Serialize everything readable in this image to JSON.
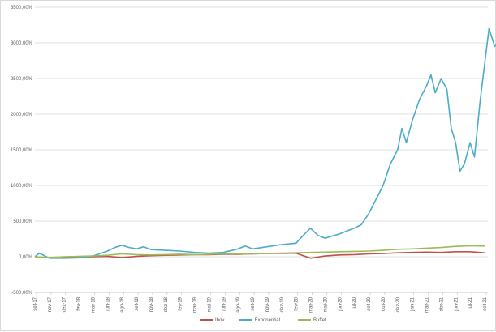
{
  "chart_data": {
    "type": "line",
    "title": "",
    "xlabel": "",
    "ylabel": "",
    "ylim": [
      -500,
      3500
    ],
    "yticks": [
      -500,
      0,
      500,
      1000,
      1500,
      2000,
      2500,
      3000,
      3500
    ],
    "yticklabels": [
      "-500,00%",
      "0,00%",
      "500,00%",
      "1000,00%",
      "1500,00%",
      "2000,00%",
      "2500,00%",
      "3000,00%",
      "3500,00%"
    ],
    "xticklabels": [
      "set-17",
      "nov-17",
      "dez-17",
      "fev-18",
      "mar-18",
      "jun-18",
      "ago-18",
      "set-18",
      "nov-18",
      "dez-18",
      "fev-19",
      "mar-19",
      "mai-19",
      "jun-19",
      "ago-19",
      "set-19",
      "nov-19",
      "dez-19",
      "fev-20",
      "mar-20",
      "mai-20",
      "jun-20",
      "jul-20",
      "set-20",
      "out-20",
      "dez-20",
      "jan-21",
      "mar-21",
      "abr-21",
      "jun-21",
      "jul-21",
      "set-21"
    ],
    "grid": "horizontal",
    "legend_position": "bottom",
    "series": [
      {
        "name": "Ibov",
        "color": "#c0504d",
        "x": [
          0,
          1,
          2,
          3,
          4,
          5,
          6,
          7,
          8,
          9,
          10,
          11,
          12,
          13,
          14,
          15,
          16,
          17,
          18,
          19,
          20,
          21,
          22,
          23,
          24,
          25,
          26,
          27,
          28,
          29,
          30,
          31
        ],
        "values": [
          0,
          -15,
          -10,
          -5,
          0,
          5,
          -10,
          5,
          15,
          20,
          25,
          30,
          30,
          35,
          35,
          40,
          45,
          45,
          50,
          -20,
          10,
          25,
          30,
          40,
          45,
          55,
          60,
          65,
          60,
          70,
          70,
          55
        ]
      },
      {
        "name": "Exponential",
        "color": "#4bacc6",
        "x": [
          0,
          0.3,
          1,
          2,
          3,
          4,
          5,
          5.5,
          6,
          6.5,
          7,
          7.5,
          8,
          9,
          10,
          11,
          12,
          13,
          14,
          14.5,
          15,
          16,
          17,
          18,
          18.5,
          19,
          19.5,
          20,
          21,
          22,
          22.5,
          23,
          23.5,
          24,
          24.5,
          25,
          25.3,
          25.6,
          26,
          26.5,
          27,
          27.3,
          27.6,
          28,
          28.4,
          28.7,
          29,
          29.3,
          29.6,
          30,
          30.3,
          30.7,
          31,
          31.3,
          31.7,
          32
        ],
        "values": [
          0,
          50,
          -20,
          -20,
          -15,
          10,
          80,
          130,
          160,
          130,
          110,
          140,
          100,
          90,
          80,
          60,
          50,
          60,
          110,
          150,
          110,
          140,
          170,
          190,
          300,
          400,
          300,
          260,
          320,
          400,
          450,
          600,
          800,
          1000,
          1300,
          1500,
          1800,
          1600,
          1900,
          2200,
          2400,
          2550,
          2300,
          2500,
          2350,
          1800,
          1600,
          1200,
          1300,
          1600,
          1400,
          2200,
          2700,
          3200,
          2950,
          3050
        ]
      },
      {
        "name": "Buffet",
        "color": "#9bbb59",
        "x": [
          0,
          1,
          2,
          3,
          4,
          5,
          6,
          7,
          8,
          9,
          10,
          11,
          12,
          13,
          14,
          15,
          16,
          17,
          18,
          19,
          20,
          21,
          22,
          23,
          24,
          25,
          26,
          27,
          28,
          29,
          30,
          31
        ],
        "values": [
          0,
          -10,
          0,
          5,
          10,
          20,
          40,
          30,
          25,
          30,
          35,
          30,
          35,
          40,
          40,
          40,
          45,
          50,
          55,
          60,
          65,
          70,
          75,
          80,
          90,
          105,
          110,
          120,
          130,
          145,
          155,
          150
        ]
      }
    ]
  }
}
